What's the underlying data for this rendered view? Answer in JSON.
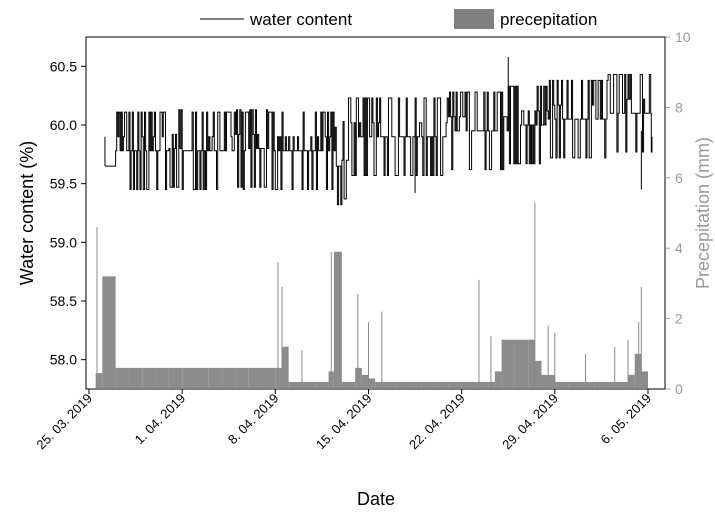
{
  "chart_data": {
    "type": "line+bar",
    "legend": {
      "placement": "top",
      "entries": [
        "water content",
        "precepitation"
      ]
    },
    "xlabel": "Date",
    "x_ticks": [
      "25. 03. 2019",
      "1. 04. 2019",
      "8. 04. 2019",
      "15. 04. 2019",
      "22. 04. 2019",
      "29. 04. 2019",
      "6. 05. 2019"
    ],
    "x_range": [
      "2019-03-25",
      "2019-05-06"
    ],
    "y_left": {
      "label": "Water content (%)",
      "range": [
        57.75,
        60.75
      ],
      "ticks": [
        "58.0",
        "58.5",
        "59.0",
        "59.5",
        "60.0",
        "60.5"
      ]
    },
    "y_right": {
      "label": "Precepitation (mm)",
      "range": [
        0,
        10
      ],
      "ticks": [
        "0",
        "2",
        "4",
        "6",
        "8",
        "10"
      ]
    },
    "colors": {
      "line": "#000000",
      "bar": "#808080",
      "right_axis": "#9a9a9a"
    },
    "series": [
      {
        "name": "water content",
        "type": "line",
        "days_offset_from_2019-03-25": [
          1.2,
          1.5,
          2,
          2.5,
          3,
          3.5,
          4,
          4.5,
          5,
          5.5,
          6,
          6.5,
          7,
          7.5,
          8,
          8.5,
          9,
          9.5,
          10,
          10.5,
          11,
          11.5,
          12,
          12.5,
          13,
          13.5,
          14,
          14.5,
          15,
          15.5,
          16,
          16.5,
          17,
          17.5,
          18,
          18.5,
          19,
          19.5,
          20,
          20.5,
          21,
          21.5,
          22,
          22.5,
          23,
          23.5,
          24,
          24.5,
          25,
          25.5,
          26,
          26.5,
          27,
          27.5,
          28,
          28.5,
          29,
          29.5,
          30,
          30.5,
          31,
          31.5,
          32,
          32.5,
          33,
          33.5,
          34,
          34.5,
          35,
          35.5,
          36,
          36.5,
          37,
          37.5,
          38,
          38.5,
          39,
          39.5,
          40,
          40.5,
          41,
          41.5,
          42,
          42.3
        ],
        "values": [
          59.65,
          59.65,
          59.78,
          59.78,
          59.78,
          59.78,
          59.78,
          59.78,
          59.78,
          59.78,
          59.8,
          59.8,
          59.78,
          59.78,
          59.78,
          59.78,
          59.78,
          59.78,
          59.78,
          59.78,
          59.8,
          59.78,
          59.8,
          59.8,
          59.8,
          59.78,
          59.78,
          59.78,
          59.78,
          59.78,
          59.78,
          59.78,
          59.78,
          59.78,
          59.78,
          59.65,
          59.7,
          59.9,
          59.9,
          59.9,
          59.9,
          59.9,
          59.9,
          59.9,
          59.9,
          59.9,
          59.9,
          59.9,
          59.9,
          59.9,
          59.9,
          59.9,
          59.95,
          59.95,
          59.95,
          59.95,
          59.95,
          59.95,
          59.95,
          59.95,
          59.95,
          60.0,
          60.0,
          60.0,
          60.0,
          60.0,
          60.0,
          60.05,
          60.05,
          60.05,
          60.05,
          60.05,
          60.05,
          60.05,
          60.05,
          60.05,
          60.1,
          60.1,
          60.1,
          60.1,
          60.1,
          60.1,
          60.1,
          59.9
        ],
        "peaks": [
          [
            31.5,
            60.58
          ],
          [
            24.5,
            59.42
          ],
          [
            41.5,
            59.45
          ]
        ]
      },
      {
        "name": "precepitation",
        "type": "bar",
        "days_offset_from_2019-03-25": [
          0.5,
          1,
          2,
          3,
          4,
          5,
          6,
          7,
          8,
          9,
          10,
          11,
          12,
          13,
          14,
          14.5,
          15,
          16,
          17,
          18,
          18.4,
          19,
          20,
          20.5,
          21,
          21.5,
          22,
          22.5,
          23,
          24,
          25,
          26,
          27,
          28,
          29,
          30,
          30.5,
          31,
          32,
          33,
          33.5,
          34,
          35,
          35.5,
          36,
          37,
          38,
          39,
          40,
          40.5,
          41,
          41.5
        ],
        "values": [
          0.45,
          3.2,
          0.6,
          0.6,
          0.6,
          0.6,
          0.6,
          0.6,
          0.6,
          0.6,
          0.6,
          0.6,
          0.6,
          0.6,
          0.6,
          1.2,
          0.2,
          0.2,
          0.2,
          0.5,
          3.9,
          0.2,
          0.6,
          0.4,
          0.3,
          0.2,
          0.2,
          0.2,
          0.2,
          0.2,
          0.2,
          0.2,
          0.2,
          0.2,
          0.2,
          0.2,
          0.5,
          1.4,
          1.4,
          1.4,
          0.8,
          0.4,
          0.2,
          0.2,
          0.2,
          0.2,
          0.2,
          0.2,
          0.2,
          0.4,
          1.0,
          0.5
        ],
        "spikes": [
          [
            0.6,
            4.6
          ],
          [
            14.2,
            3.6
          ],
          [
            14.5,
            2.9
          ],
          [
            16,
            1.1
          ],
          [
            18.2,
            3.9
          ],
          [
            20.2,
            2.7
          ],
          [
            21,
            1.9
          ],
          [
            22,
            2.2
          ],
          [
            29.3,
            3.1
          ],
          [
            30.2,
            1.5
          ],
          [
            33.5,
            5.3
          ],
          [
            34.5,
            1.8
          ],
          [
            35,
            1.6
          ],
          [
            37.3,
            1.0
          ],
          [
            39.5,
            1.2
          ],
          [
            40.5,
            1.4
          ],
          [
            41.3,
            1.9
          ],
          [
            41.5,
            2.9
          ]
        ]
      }
    ]
  }
}
